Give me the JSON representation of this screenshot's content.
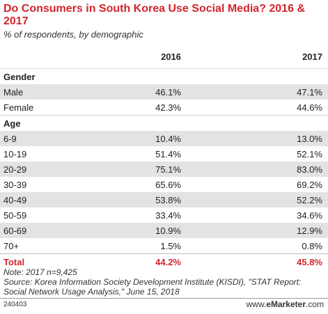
{
  "header": {
    "title": "Do Consumers in South Korea Use Social Media? 2016 & 2017",
    "subtitle": "% of respondents, by demographic"
  },
  "chart_data": {
    "type": "table",
    "columns": [
      "2016",
      "2017"
    ],
    "sections": [
      {
        "name": "Gender",
        "rows": [
          {
            "label": "Male",
            "values": [
              "46.1%",
              "47.1%"
            ]
          },
          {
            "label": "Female",
            "values": [
              "42.3%",
              "44.6%"
            ]
          }
        ]
      },
      {
        "name": "Age",
        "rows": [
          {
            "label": "6-9",
            "values": [
              "10.4%",
              "13.0%"
            ]
          },
          {
            "label": "10-19",
            "values": [
              "51.4%",
              "52.1%"
            ]
          },
          {
            "label": "20-29",
            "values": [
              "75.1%",
              "83.0%"
            ]
          },
          {
            "label": "30-39",
            "values": [
              "65.6%",
              "69.2%"
            ]
          },
          {
            "label": "40-49",
            "values": [
              "53.8%",
              "52.2%"
            ]
          },
          {
            "label": "50-59",
            "values": [
              "33.4%",
              "34.6%"
            ]
          },
          {
            "label": "60-69",
            "values": [
              "10.9%",
              "12.9%"
            ]
          },
          {
            "label": "70+",
            "values": [
              "1.5%",
              "0.8%"
            ]
          }
        ]
      }
    ],
    "total": {
      "label": "Total",
      "values": [
        "44.2%",
        "45.8%"
      ]
    }
  },
  "notes": {
    "note": "Note: 2017 n=9,425",
    "source": "Source: Korea Information Society Development Institute (KISDI), \"STAT Report: Social Network Usage Analysis,\" June 15, 2018"
  },
  "footer": {
    "code": "240403",
    "brand_prefix": "www.",
    "brand_bold": "eMarketer",
    "brand_suffix": ".com"
  },
  "colors": {
    "accent": "#d3242c",
    "row_shade": "#e3e3e3"
  }
}
